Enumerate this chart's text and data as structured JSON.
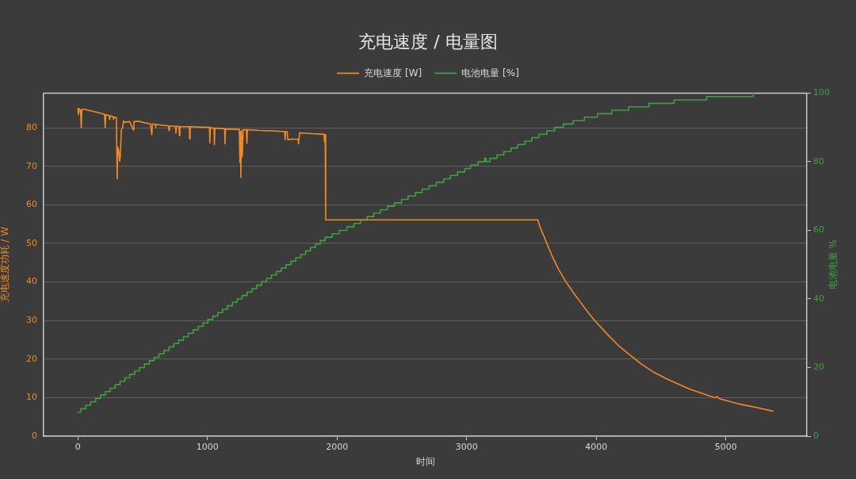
{
  "chart_data": {
    "type": "line",
    "title": "充电速度 / 电量图",
    "xlabel": "时间",
    "ylabel": "充电速度功耗 / W",
    "y2label": "电池电量 %",
    "xlim": [
      -265,
      5625
    ],
    "xticks": [
      0,
      1000,
      2000,
      3000,
      4000,
      5000
    ],
    "ylim": [
      0,
      89
    ],
    "yticks": [
      0,
      10,
      20,
      30,
      40,
      50,
      60,
      70,
      80
    ],
    "y2lim": [
      0,
      100
    ],
    "y2ticks": [
      0,
      20,
      40,
      60,
      80,
      100
    ],
    "grid": "y",
    "legend": "top",
    "marker": "none",
    "series": [
      {
        "name": "充电速度 [W]",
        "color": "#f28a1e",
        "x": [
          0,
          4,
          10,
          20,
          26,
          30,
          60,
          100,
          150,
          205,
          210,
          215,
          240,
          245,
          250,
          270,
          275,
          280,
          297,
          303,
          307,
          315,
          322,
          327,
          335,
          345,
          352,
          360,
          400,
          427,
          432,
          470,
          500,
          560,
          570,
          575,
          598,
          600,
          602,
          640,
          700,
          702,
          706,
          753,
          756,
          760,
          780,
          783,
          787,
          860,
          862,
          866,
          1015,
          1018,
          1022,
          1050,
          1053,
          1057,
          1132,
          1135,
          1139,
          1245,
          1250,
          1255,
          1257,
          1262,
          1268,
          1275,
          1300,
          1304,
          1308,
          1400,
          1500,
          1595,
          1599,
          1603,
          1615,
          1620,
          1650,
          1700,
          1702,
          1711,
          1800,
          1899,
          1903,
          1908,
          1912,
          3549,
          3566,
          3599,
          3626,
          3654,
          3709,
          3765,
          3820,
          3875,
          3930,
          3985,
          4040,
          4095,
          4172,
          4250,
          4349,
          4448,
          4547,
          4646,
          4723,
          4800,
          4915,
          4933,
          4950,
          5109,
          5241,
          5362
        ],
        "values": [
          85.0,
          83.5,
          84.9,
          84.5,
          80.0,
          84.8,
          84.7,
          84.4,
          84.0,
          83.5,
          80.0,
          83.4,
          83.2,
          82.1,
          83.1,
          82.9,
          82.2,
          82.8,
          82.6,
          66.7,
          75.0,
          74.0,
          71.3,
          72.5,
          79.5,
          80.0,
          81.8,
          81.4,
          81.6,
          79.5,
          81.6,
          81.7,
          81.4,
          81.0,
          78.2,
          81.0,
          80.9,
          80.1,
          80.9,
          80.7,
          80.5,
          79.3,
          80.5,
          80.4,
          78.6,
          80.4,
          80.4,
          78.0,
          80.3,
          80.3,
          77.1,
          80.3,
          80.1,
          76.1,
          80.0,
          79.9,
          75.6,
          79.9,
          79.8,
          75.8,
          79.7,
          79.6,
          71.0,
          79.0,
          67.1,
          79.3,
          72.5,
          79.5,
          79.5,
          76.0,
          79.5,
          79.3,
          79.2,
          79.0,
          76.9,
          79.0,
          79.0,
          76.9,
          77.1,
          77.0,
          75.8,
          78.7,
          78.5,
          78.3,
          76.4,
          78.2,
          56.1,
          56.1,
          54.2,
          51.6,
          49.4,
          47.1,
          43.3,
          40.1,
          37.4,
          34.9,
          32.4,
          30.1,
          28.1,
          26.1,
          23.5,
          21.3,
          18.7,
          16.5,
          14.8,
          13.3,
          12.2,
          11.3,
          10.0,
          10.3,
          9.7,
          8.3,
          7.4,
          6.5
        ]
      },
      {
        "name": "电池电量 [%]",
        "type": "step",
        "axis": "y2",
        "color": "#3da23d",
        "x": [
          0,
          23,
          61,
          98,
          136,
          174,
          212,
          249,
          287,
          325,
          362,
          400,
          438,
          475,
          513,
          551,
          589,
          626,
          664,
          702,
          739,
          777,
          815,
          852,
          890,
          928,
          966,
          1003,
          1041,
          1079,
          1116,
          1154,
          1192,
          1229,
          1267,
          1305,
          1343,
          1380,
          1418,
          1456,
          1493,
          1531,
          1569,
          1606,
          1644,
          1682,
          1720,
          1757,
          1795,
          1833,
          1870,
          1908,
          1962,
          2017,
          2075,
          2130,
          2180,
          2231,
          2283,
          2333,
          2388,
          2442,
          2497,
          2547,
          2604,
          2656,
          2711,
          2766,
          2823,
          2874,
          2929,
          2986,
          3030,
          3088,
          3139,
          3149,
          3179,
          3234,
          3287,
          3343,
          3393,
          3448,
          3502,
          3557,
          3618,
          3679,
          3746,
          3822,
          3909,
          4009,
          4119,
          4250,
          4407,
          4600,
          4851,
          5212
        ],
        "values": [
          7,
          8,
          9,
          10,
          11,
          12,
          13,
          14,
          15,
          16,
          17,
          18,
          19,
          20,
          21,
          22,
          23,
          24,
          25,
          26,
          27,
          28,
          29,
          30,
          31,
          32,
          33,
          34,
          35,
          36,
          37,
          38,
          39,
          40,
          41,
          42,
          43,
          44,
          45,
          46,
          47,
          48,
          49,
          50,
          51,
          52,
          53,
          54,
          55,
          56,
          57,
          58,
          59,
          60,
          61,
          62,
          63,
          64,
          65,
          66,
          67,
          68,
          69,
          70,
          71,
          72,
          73,
          74,
          75,
          76,
          77,
          78,
          79,
          80,
          81,
          80,
          81,
          82,
          83,
          84,
          85,
          86,
          87,
          88,
          89,
          90,
          91,
          92,
          93,
          94,
          95,
          96,
          97,
          98,
          99,
          100
        ]
      }
    ]
  }
}
